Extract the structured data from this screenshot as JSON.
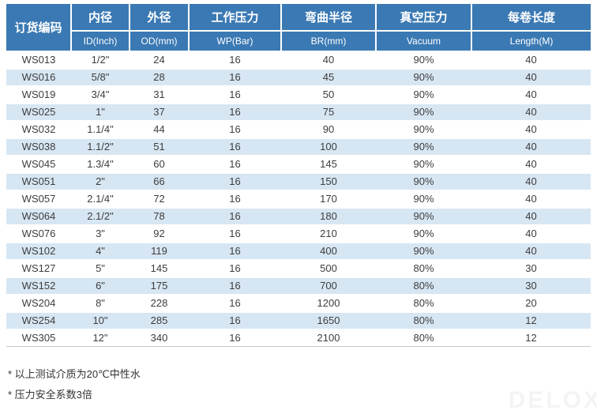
{
  "table": {
    "columns": [
      {
        "zh": "订货编码",
        "en": ""
      },
      {
        "zh": "内径",
        "en": "ID(Inch)"
      },
      {
        "zh": "外径",
        "en": "OD(mm)"
      },
      {
        "zh": "工作压力",
        "en": "WP(Bar)"
      },
      {
        "zh": "弯曲半径",
        "en": "BR(mm)"
      },
      {
        "zh": "真空压力",
        "en": "Vacuum"
      },
      {
        "zh": "每卷长度",
        "en": "Length(M)"
      }
    ],
    "rows": [
      [
        "WS013",
        "1/2\"",
        "24",
        "16",
        "40",
        "90%",
        "40"
      ],
      [
        "WS016",
        "5/8\"",
        "28",
        "16",
        "45",
        "90%",
        "40"
      ],
      [
        "WS019",
        "3/4\"",
        "31",
        "16",
        "50",
        "90%",
        "40"
      ],
      [
        "WS025",
        "1\"",
        "37",
        "16",
        "75",
        "90%",
        "40"
      ],
      [
        "WS032",
        "1.1/4\"",
        "44",
        "16",
        "90",
        "90%",
        "40"
      ],
      [
        "WS038",
        "1.1/2\"",
        "51",
        "16",
        "100",
        "90%",
        "40"
      ],
      [
        "WS045",
        "1.3/4\"",
        "60",
        "16",
        "145",
        "90%",
        "40"
      ],
      [
        "WS051",
        "2\"",
        "66",
        "16",
        "150",
        "90%",
        "40"
      ],
      [
        "WS057",
        "2.1/4\"",
        "72",
        "16",
        "170",
        "90%",
        "40"
      ],
      [
        "WS064",
        "2.1/2\"",
        "78",
        "16",
        "180",
        "90%",
        "40"
      ],
      [
        "WS076",
        "3\"",
        "92",
        "16",
        "210",
        "90%",
        "40"
      ],
      [
        "WS102",
        "4\"",
        "119",
        "16",
        "400",
        "90%",
        "40"
      ],
      [
        "WS127",
        "5\"",
        "145",
        "16",
        "500",
        "80%",
        "30"
      ],
      [
        "WS152",
        "6\"",
        "175",
        "16",
        "700",
        "80%",
        "30"
      ],
      [
        "WS204",
        "8\"",
        "228",
        "16",
        "1200",
        "80%",
        "20"
      ],
      [
        "WS254",
        "10\"",
        "285",
        "16",
        "1650",
        "80%",
        "12"
      ],
      [
        "WS305",
        "12\"",
        "340",
        "16",
        "2100",
        "80%",
        "12"
      ]
    ]
  },
  "notes": [
    "* 以上测试介质为20℃中性水",
    "* 压力安全系数3倍"
  ],
  "watermark": "DELOX",
  "colors": {
    "header_bg": "#3a79b3",
    "stripe_bg": "#d7e6f3",
    "body_text": "#3d3d3d",
    "header_text": "#ffffff"
  }
}
